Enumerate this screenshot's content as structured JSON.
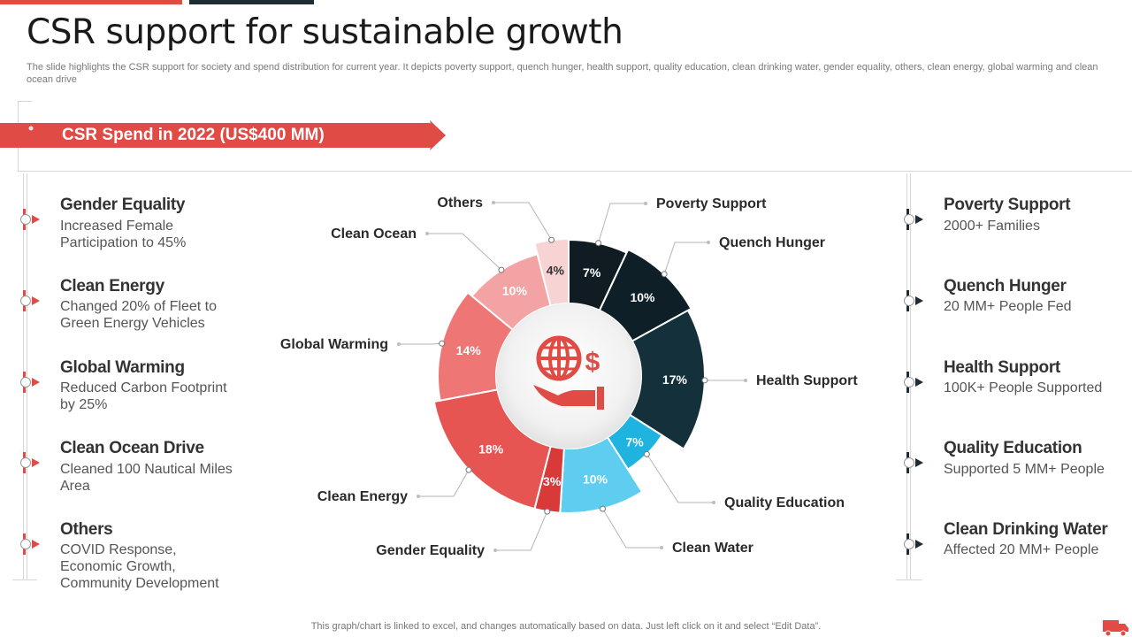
{
  "title": "CSR support for sustainable growth",
  "subtitle": "The slide highlights the CSR support for society and spend distribution for current year.  It depicts poverty support, quench hunger, health support, quality education, clean drinking water, gender equality, others, clean energy, global warming and clean ocean drive",
  "banner": "CSR Spend in 2022 (US$400 MM)",
  "colors": {
    "accent_red": "#e04b45",
    "dark_navy": "#1e2d33",
    "cyan": "#29b6e0"
  },
  "left_items": [
    {
      "title": "Gender Equality",
      "desc": "Increased Female Participation to 45%"
    },
    {
      "title": "Clean Energy",
      "desc": "Changed 20% of Fleet to Green Energy Vehicles"
    },
    {
      "title": "Global Warming",
      "desc": "Reduced Carbon Footprint by 25%"
    },
    {
      "title": "Clean Ocean Drive",
      "desc": "Cleaned 100 Nautical Miles Area"
    },
    {
      "title": "Others",
      "desc": "COVID Response, Economic Growth, Community  Development"
    }
  ],
  "right_items": [
    {
      "title": "Poverty Support",
      "desc": "2000+ Families"
    },
    {
      "title": "Quench Hunger",
      "desc": "20 MM+ People Fed"
    },
    {
      "title": "Health Support",
      "desc": "100K+ People Supported"
    },
    {
      "title": "Quality Education",
      "desc": "Supported 5 MM+ People"
    },
    {
      "title": "Clean Drinking Water",
      "desc": "Affected 20 MM+ People"
    }
  ],
  "center_icon": "globe-dollar-hand-icon",
  "chart_data": {
    "type": "pie",
    "title": "",
    "unit": "%",
    "slices": [
      {
        "name": "Poverty Support",
        "value": 7,
        "label": "7%",
        "color": "#101c22"
      },
      {
        "name": "Quench Hunger",
        "value": 10,
        "label": "10%",
        "color": "#0e1f27"
      },
      {
        "name": "Health Support",
        "value": 17,
        "label": "17%",
        "color": "#14303b"
      },
      {
        "name": "Quality Education",
        "value": 7,
        "label": "7%",
        "color": "#1fb3e0"
      },
      {
        "name": "Clean Water",
        "value": 10,
        "label": "10%",
        "color": "#5ecdf0"
      },
      {
        "name": "Gender Equality",
        "value": 3,
        "label": "3%",
        "color": "#d83a3a"
      },
      {
        "name": "Clean Energy",
        "value": 18,
        "label": "18%",
        "color": "#e65552"
      },
      {
        "name": "Global Warming",
        "value": 14,
        "label": "14%",
        "color": "#ee7775"
      },
      {
        "name": "Clean Ocean",
        "value": 10,
        "label": "10%",
        "color": "#f3a3a3"
      },
      {
        "name": "Others",
        "value": 4,
        "label": "4%",
        "color": "#f8d3d3"
      }
    ]
  },
  "footnote": "This graph/chart is linked to excel,  and changes automatically based on data. Just left click on it and select “Edit Data”."
}
